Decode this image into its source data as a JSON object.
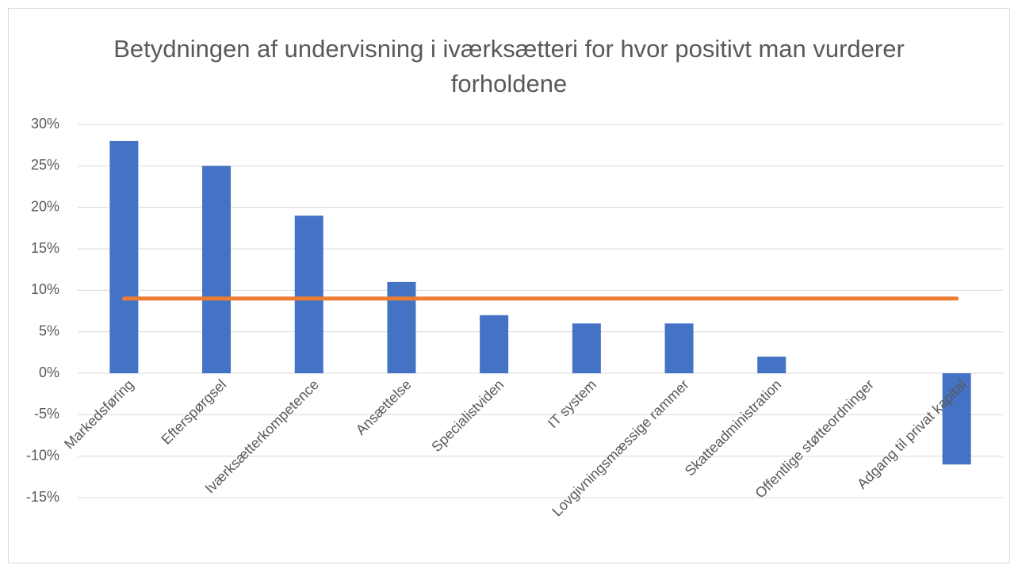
{
  "chart_data": {
    "type": "bar",
    "title": "Betydningen af undervisning i iværksætteri for hvor positivt man vurderer forholdene",
    "categories": [
      "Markedsføring",
      "Efterspørgsel",
      "Iværksætterkompetence",
      "Ansættelse",
      "Specialistviden",
      "IT system",
      "Lovgivningsmæssige rammer",
      "Skatteadministration",
      "Offentlige støtteordninger",
      "Adgang til privat kapital"
    ],
    "series": [
      {
        "type": "bar",
        "color": "#4472c4",
        "values": [
          28,
          25,
          19,
          11,
          7,
          6,
          6,
          2,
          0,
          -11
        ]
      },
      {
        "type": "line",
        "color": "#ed7d31",
        "values": [
          9,
          9,
          9,
          9,
          9,
          9,
          9,
          9,
          9,
          9
        ]
      }
    ],
    "ylim": [
      -15,
      30
    ],
    "yticks": [
      {
        "value": -15,
        "label": "-15%"
      },
      {
        "value": -10,
        "label": "-10%"
      },
      {
        "value": -5,
        "label": "-5%"
      },
      {
        "value": 0,
        "label": "0%"
      },
      {
        "value": 5,
        "label": "5%"
      },
      {
        "value": 10,
        "label": "10%"
      },
      {
        "value": 15,
        "label": "15%"
      },
      {
        "value": 20,
        "label": "20%"
      },
      {
        "value": 25,
        "label": "25%"
      },
      {
        "value": 30,
        "label": "30%"
      }
    ],
    "grid": true
  }
}
